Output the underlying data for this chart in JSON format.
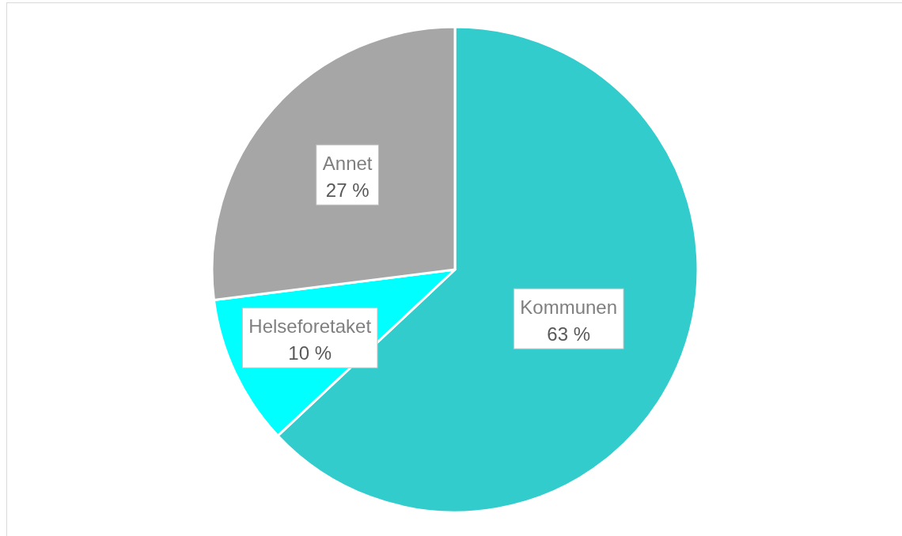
{
  "chart_data": {
    "type": "pie",
    "categories": [
      "Kommunen",
      "Helseforetaket",
      "Annet"
    ],
    "values": [
      63,
      10,
      27
    ],
    "colors": [
      "#33cccc",
      "#00ffff",
      "#a6a6a6"
    ],
    "value_labels": [
      "63 %",
      "10 %",
      "27 %"
    ],
    "legend": false
  }
}
